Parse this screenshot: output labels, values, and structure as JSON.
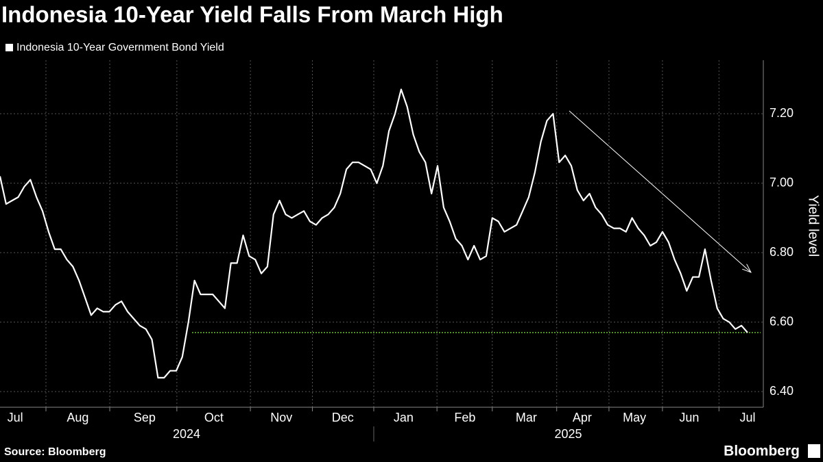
{
  "chart_data": {
    "type": "line",
    "title": "Indonesia 10-Year Yield Falls From March High",
    "source": "Source: Bloomberg",
    "brand": "Bloomberg",
    "y_label": "Yield level",
    "series": [
      {
        "name": "Indonesia 10-Year Government Bond Yield",
        "color": "#ffffff",
        "values": [
          7.02,
          6.94,
          6.95,
          6.96,
          6.99,
          7.01,
          6.96,
          6.92,
          6.86,
          6.81,
          6.81,
          6.78,
          6.76,
          6.72,
          6.67,
          6.62,
          6.64,
          6.63,
          6.63,
          6.65,
          6.66,
          6.63,
          6.61,
          6.59,
          6.58,
          6.55,
          6.44,
          6.44,
          6.46,
          6.46,
          6.5,
          6.6,
          6.72,
          6.68,
          6.68,
          6.68,
          6.66,
          6.64,
          6.77,
          6.77,
          6.85,
          6.79,
          6.78,
          6.74,
          6.76,
          6.91,
          6.95,
          6.91,
          6.9,
          6.91,
          6.92,
          6.89,
          6.88,
          6.9,
          6.91,
          6.93,
          6.97,
          7.04,
          7.06,
          7.06,
          7.05,
          7.04,
          7.0,
          7.05,
          7.15,
          7.2,
          7.27,
          7.22,
          7.14,
          7.09,
          7.06,
          6.97,
          7.05,
          6.93,
          6.89,
          6.84,
          6.82,
          6.78,
          6.82,
          6.78,
          6.79,
          6.9,
          6.89,
          6.86,
          6.87,
          6.88,
          6.92,
          6.96,
          7.03,
          7.12,
          7.18,
          7.2,
          7.06,
          7.08,
          7.05,
          6.98,
          6.95,
          6.97,
          6.93,
          6.91,
          6.88,
          6.87,
          6.87,
          6.86,
          6.9,
          6.87,
          6.85,
          6.82,
          6.83,
          6.86,
          6.83,
          6.78,
          6.74,
          6.69,
          6.73,
          6.73,
          6.81,
          6.72,
          6.64,
          6.61,
          6.6,
          6.58,
          6.59,
          6.57
        ]
      }
    ],
    "categories": [
      null,
      null,
      null,
      null,
      null,
      null,
      null,
      null,
      null,
      null,
      null,
      null,
      null,
      null,
      null,
      null,
      null,
      null,
      null,
      null,
      null,
      null,
      null,
      null,
      null,
      null,
      null,
      null,
      null,
      null,
      null,
      null,
      null,
      null,
      null,
      null,
      null,
      null,
      null,
      null,
      null,
      null,
      null,
      null,
      null,
      null,
      null,
      null,
      null,
      null,
      null,
      null,
      null,
      null,
      null,
      null,
      null,
      null,
      null,
      null,
      null,
      null,
      null,
      null,
      null,
      null,
      null,
      null,
      null,
      null,
      null,
      null,
      null,
      null,
      null,
      null,
      null,
      null,
      null,
      null,
      null,
      null,
      null,
      null,
      null,
      null,
      null,
      null,
      null,
      null,
      null,
      null,
      null,
      null,
      null,
      null,
      null,
      null,
      null,
      null,
      null,
      null,
      null,
      null,
      null,
      null,
      null,
      null,
      null,
      null,
      null,
      null,
      null,
      null,
      null,
      null,
      null,
      null,
      null,
      null,
      null,
      null,
      null,
      null
    ],
    "xlim": [
      0,
      125.6
    ],
    "xticks": [
      {
        "value": 2.5,
        "label": "Jul"
      },
      {
        "value": 12.8,
        "label": "Aug"
      },
      {
        "value": 23.8,
        "label": "Sep"
      },
      {
        "value": 35.2,
        "label": "Oct"
      },
      {
        "value": 46.3,
        "label": "Nov"
      },
      {
        "value": 56.4,
        "label": "Dec"
      },
      {
        "value": 66.4,
        "label": "Jan"
      },
      {
        "value": 76.5,
        "label": "Feb"
      },
      {
        "value": 86.6,
        "label": "Mar"
      },
      {
        "value": 95.8,
        "label": "Apr"
      },
      {
        "value": 104.4,
        "label": "May"
      },
      {
        "value": 113.4,
        "label": "Jun"
      },
      {
        "value": 123.0,
        "label": "Jul"
      }
    ],
    "xgrid": [
      7.56,
      18.06,
      29.1,
      41.2,
      51.4,
      61.5,
      71.9,
      81.0,
      91.6,
      100.2,
      109.0,
      118.3
    ],
    "years": [
      {
        "value": 30.7,
        "label": "2024"
      },
      {
        "value": 93.5,
        "label": "2025"
      }
    ],
    "year_divider": 61.5,
    "ylim": [
      6.355,
      7.354
    ],
    "yticks": [
      {
        "value": 6.4,
        "label": "6.40"
      },
      {
        "value": 6.6,
        "label": "6.60"
      },
      {
        "value": 6.8,
        "label": "6.80"
      },
      {
        "value": 7.0,
        "label": "7.00"
      },
      {
        "value": 7.2,
        "label": "7.20"
      }
    ],
    "grid": true,
    "reference_line": {
      "value": 6.57,
      "color": "#6fbf3f"
    }
  }
}
